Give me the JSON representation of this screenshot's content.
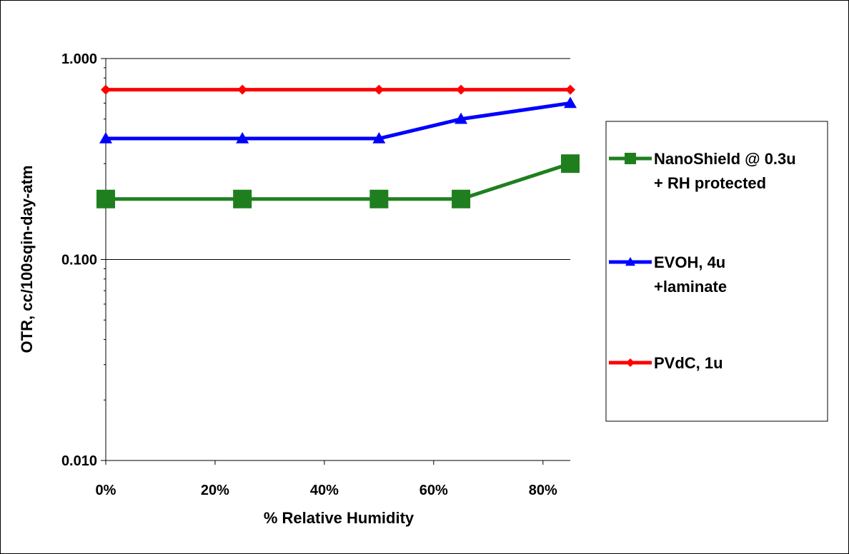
{
  "chart_data": {
    "type": "line",
    "xlabel": "% Relative Humidity",
    "ylabel": "OTR, cc/100sqin-day-atm",
    "xlim": [
      0,
      0.85
    ],
    "ylim": [
      0.01,
      1
    ],
    "y_scale": "log",
    "x_ticks": [
      0,
      0.2,
      0.4,
      0.6,
      0.8
    ],
    "x_tick_labels": [
      "0%",
      "20%",
      "40%",
      "60%",
      "80%"
    ],
    "y_ticks": [
      0.01,
      0.1,
      1
    ],
    "y_tick_labels": [
      "0.010",
      "0.100",
      "1.000"
    ],
    "grid": "horizontal major",
    "legend_position": "right",
    "series": [
      {
        "name_lines": [
          "NanoShield @ 0.3u",
          "+ RH protected"
        ],
        "color": "#1f7f1f",
        "marker": "square",
        "x": [
          0,
          0.25,
          0.5,
          0.65,
          0.85
        ],
        "y": [
          0.2,
          0.2,
          0.2,
          0.2,
          0.3
        ]
      },
      {
        "name_lines": [
          "EVOH, 4u",
          "+laminate"
        ],
        "color": "#0000ff",
        "marker": "triangle",
        "x": [
          0,
          0.25,
          0.5,
          0.65,
          0.85
        ],
        "y": [
          0.4,
          0.4,
          0.4,
          0.5,
          0.6
        ]
      },
      {
        "name_lines": [
          "PVdC, 1u"
        ],
        "color": "#ff0000",
        "marker": "diamond",
        "x": [
          0,
          0.25,
          0.5,
          0.65,
          0.85
        ],
        "y": [
          0.7,
          0.7,
          0.7,
          0.7,
          0.7
        ]
      }
    ]
  }
}
